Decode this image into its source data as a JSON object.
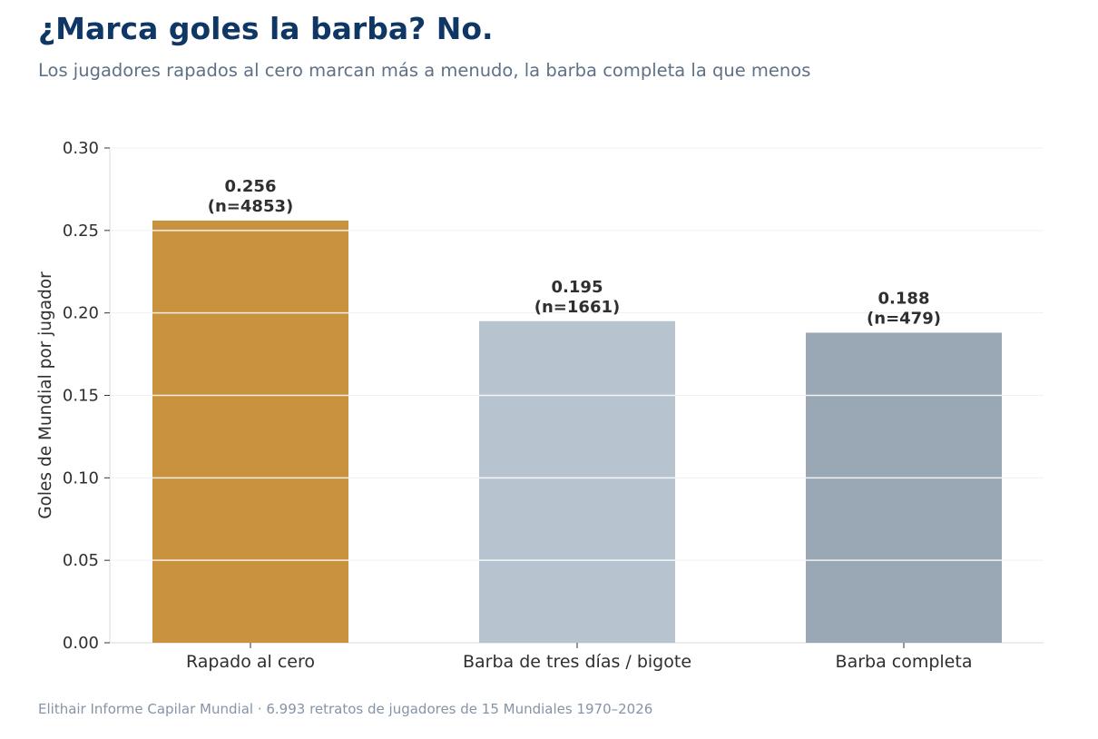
{
  "header": {
    "title": "¿Marca goles la barba? No.",
    "subtitle": "Los jugadores rapados al cero marcan más a menudo, la barba completa la que menos"
  },
  "footer": {
    "source": "Elithair Informe Capilar Mundial  ·  6.993 retratos de jugadores de 15 Mundiales 1970–2026"
  },
  "chart_data": {
    "type": "bar",
    "categories": [
      "Rapado al cero",
      "Barba de tres días / bigote",
      "Barba completa"
    ],
    "values": [
      0.256,
      0.195,
      0.188
    ],
    "value_labels": [
      "0.256",
      "0.195",
      "0.188"
    ],
    "sample_labels": [
      "(n=4853)",
      "(n=1661)",
      "(n=479)"
    ],
    "xlabel": "",
    "ylabel": "Goles de Mundial por jugador",
    "ylim": [
      0,
      0.3
    ],
    "yticks": [
      "0.00",
      "0.05",
      "0.10",
      "0.15",
      "0.20",
      "0.25",
      "0.30"
    ],
    "colors": [
      "#c8923f",
      "#b8c3d0",
      "#9aa7b5"
    ],
    "grid": true,
    "legend": "none"
  }
}
